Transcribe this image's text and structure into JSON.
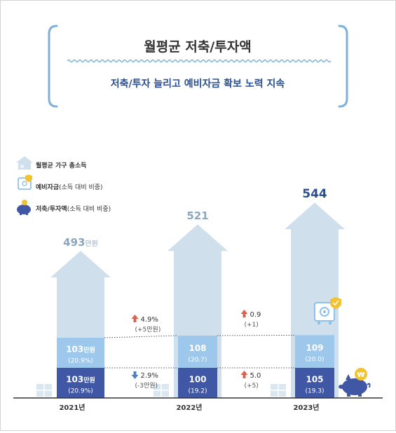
{
  "header": {
    "title": "월평균 저축/투자액",
    "subtitle": "저축/투자 늘리고 예비자금 확보 노력 지속"
  },
  "legend": {
    "items": [
      {
        "label": "월평균 가구 총소득",
        "suffix": "",
        "icon": "house-icon"
      },
      {
        "label": "예비자금",
        "suffix": "(소득 대비 비중)",
        "icon": "safe-icon"
      },
      {
        "label": "저축/투자액",
        "suffix": "(소득 대비 비중)",
        "icon": "piggy-bank-icon"
      }
    ]
  },
  "colors": {
    "house": "#cfe0ec",
    "reserve": "#9dc8ec",
    "savings": "#3f57a5",
    "title_text": "#333333",
    "subtitle_text": "#2a4f8f",
    "up_arrow": "#d9634e",
    "down_arrow": "#4f7fc7",
    "bracket": "#7fb0dc"
  },
  "chart_data": {
    "type": "bar",
    "categories": [
      "2021년",
      "2022년",
      "2023년"
    ],
    "series": [
      {
        "name": "월평균 가구 총소득",
        "values": [
          493,
          521,
          544
        ],
        "labels": [
          "493",
          "521",
          "544"
        ],
        "unit_label": "만원"
      },
      {
        "name": "예비자금",
        "values": [
          103,
          108,
          109
        ],
        "labels": [
          "103",
          "108",
          "109"
        ],
        "share_labels": [
          "(20.9%)",
          "(20.7)",
          "(20.0)"
        ],
        "unit_label": "만원"
      },
      {
        "name": "저축/투자액",
        "values": [
          103,
          100,
          105
        ],
        "labels": [
          "103",
          "100",
          "105"
        ],
        "share_labels": [
          "(20.9%)",
          "(19.2)",
          "(19.3)"
        ],
        "unit_label": "만원"
      }
    ],
    "changes": {
      "reserve": [
        {
          "direction": "up",
          "pct": "4.9%",
          "abs": "(+5만원)"
        },
        {
          "direction": "up",
          "pct": "0.9",
          "abs": "(+1)"
        }
      ],
      "savings": [
        {
          "direction": "down",
          "pct": "2.9%",
          "abs": "(-3만원)"
        },
        {
          "direction": "up",
          "pct": "5.0",
          "abs": "(+5)"
        }
      ]
    }
  }
}
